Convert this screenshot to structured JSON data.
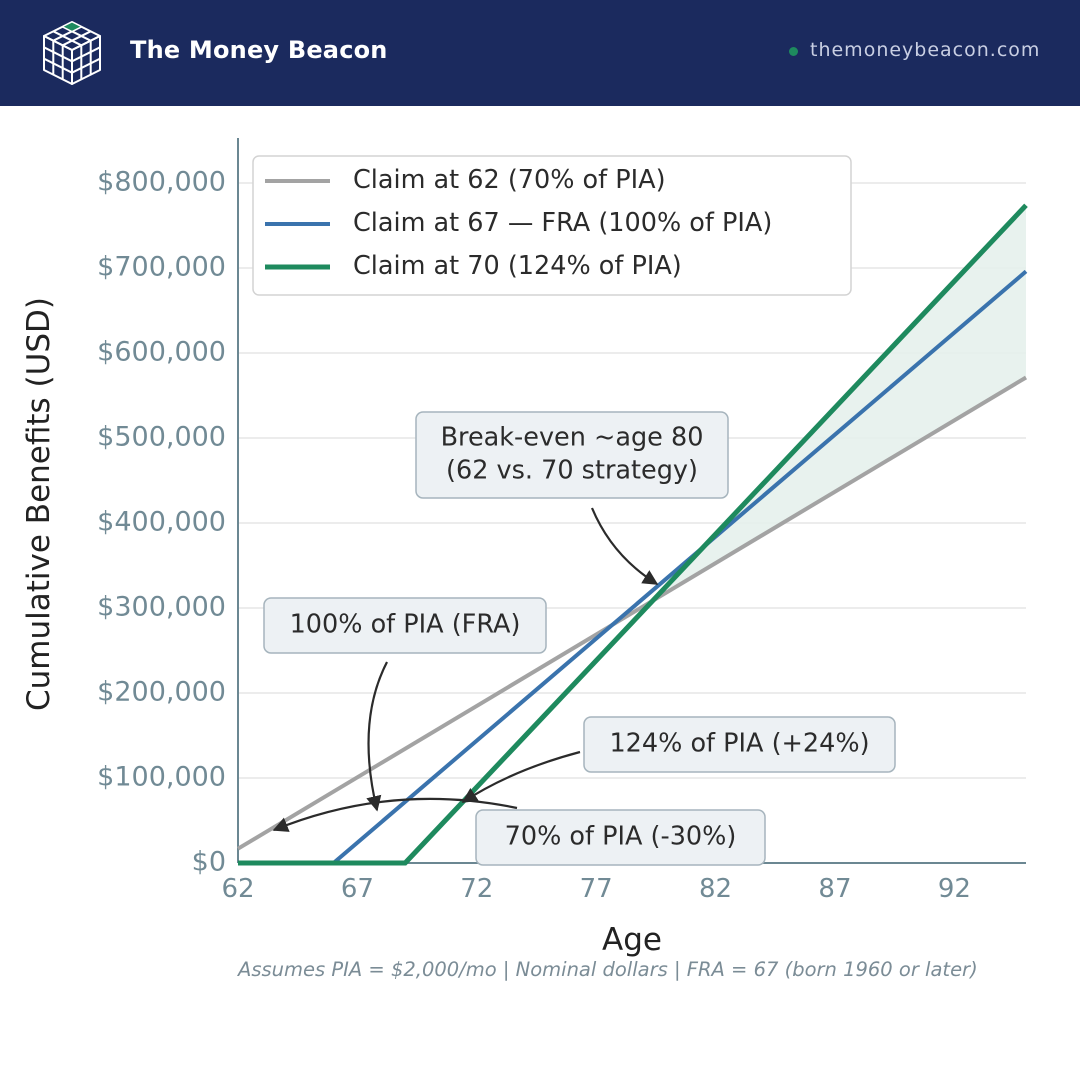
{
  "header": {
    "brand": "The Money Beacon",
    "site": "themoneybeacon.com",
    "colors": {
      "bar": "#1b2a5e",
      "accent": "#1e8a5e"
    },
    "logo_icon": "cube-grid-logo-icon"
  },
  "chart_data": {
    "type": "line",
    "xlabel": "Age",
    "ylabel": "Cumulative Benefits (USD)",
    "xlim": [
      62,
      95
    ],
    "ylim": [
      0,
      800000
    ],
    "xticks": [
      62,
      67,
      72,
      77,
      82,
      87,
      92
    ],
    "xtick_labels": [
      "62",
      "67",
      "72",
      "77",
      "82",
      "87",
      "92"
    ],
    "yticks": [
      0,
      100000,
      200000,
      300000,
      400000,
      500000,
      600000,
      700000,
      800000
    ],
    "ytick_labels": [
      "$0",
      "$100,000",
      "$200,000",
      "$300,000",
      "$400,000",
      "$500,000",
      "$600,000",
      "$700,000",
      "$800,000"
    ],
    "grid": "horizontal",
    "legend_position": "top-left",
    "series": [
      {
        "name": "Claim at 62 (70% of PIA)",
        "color": "#a3a3a3",
        "points": [
          [
            62,
            16800
          ],
          [
            95,
            571200
          ]
        ]
      },
      {
        "name": "Claim at 67 — FRA (100% of PIA)",
        "color": "#3a73ad",
        "points": [
          [
            62,
            0
          ],
          [
            66,
            0
          ],
          [
            95,
            696000
          ]
        ]
      },
      {
        "name": "Claim at 70 (124% of PIA)",
        "color": "#1e8a5e",
        "points": [
          [
            62,
            0
          ],
          [
            69,
            0
          ],
          [
            95,
            773760
          ]
        ]
      }
    ],
    "shaded_region": {
      "between": [
        "Claim at 62 (70% of PIA)",
        "Claim at 70 (124% of PIA)"
      ],
      "from_x": 80,
      "to_x": 95,
      "color": "#e5f1ec"
    },
    "annotations": [
      {
        "lines": [
          "Break-even ~age 80",
          "(62 vs. 70 strategy)"
        ]
      },
      {
        "lines": [
          "100% of PIA (FRA)"
        ]
      },
      {
        "lines": [
          "124% of PIA (+24%)"
        ]
      },
      {
        "lines": [
          "70% of PIA (-30%)"
        ]
      }
    ]
  },
  "footnote": "Assumes PIA = $2,000/mo | Nominal dollars | FRA = 67 (born 1960 or later)"
}
